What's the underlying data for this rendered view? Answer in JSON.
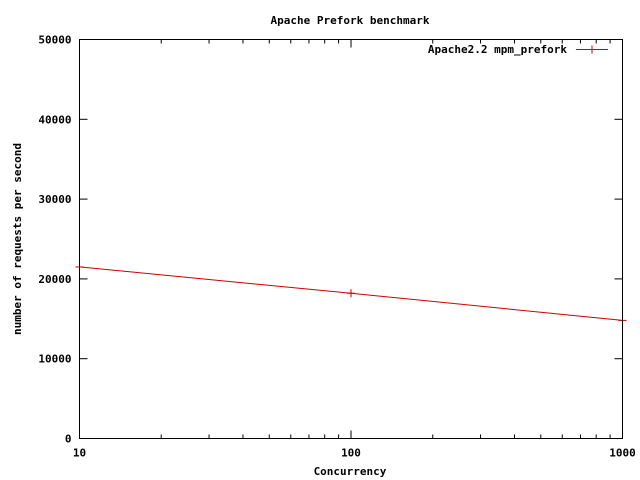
{
  "chart_data": {
    "type": "line",
    "title": "Apache Prefork benchmark",
    "xlabel": "Concurrency",
    "ylabel": "number of requests per second",
    "xscale": "log",
    "xlim": [
      10,
      1000
    ],
    "ylim": [
      0,
      50000
    ],
    "xticks": [
      10,
      100,
      1000
    ],
    "xtick_labels": [
      "10",
      "100",
      "1000"
    ],
    "yticks": [
      0,
      10000,
      20000,
      30000,
      40000,
      50000
    ],
    "ytick_labels": [
      "0",
      "10000",
      "20000",
      "30000",
      "40000",
      "50000"
    ],
    "grid": false,
    "legend_position": "top-right",
    "series": [
      {
        "name": "Apache2.2 mpm_prefork",
        "color": "#cc0000",
        "marker": "plus",
        "x": [
          10,
          100,
          1000
        ],
        "y": [
          21500,
          18200,
          14800
        ]
      }
    ]
  }
}
